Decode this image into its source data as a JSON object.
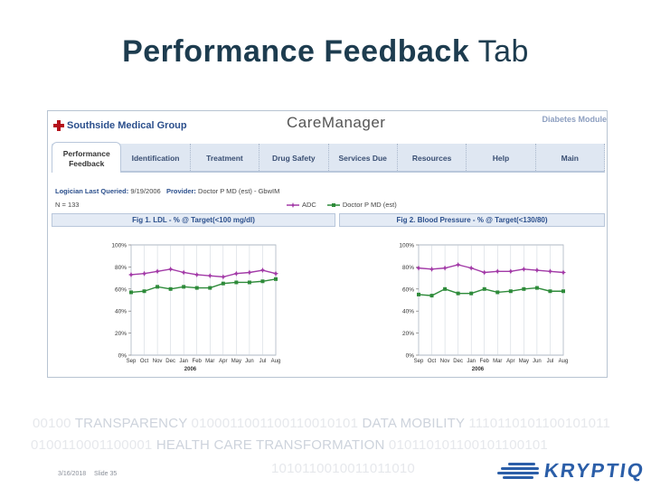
{
  "slide": {
    "title_bold": "Performance Feedback",
    "title_rest": "Tab",
    "date": "3/16/2018",
    "slide_label": "Slide 35"
  },
  "app": {
    "org": "Southside Medical Group",
    "title": "CareManager",
    "module": "Diabetes Module",
    "tabs": [
      {
        "label": "Performance Feedback",
        "active": true
      },
      {
        "label": "Identification",
        "active": false
      },
      {
        "label": "Treatment",
        "active": false
      },
      {
        "label": "Drug Safety",
        "active": false
      },
      {
        "label": "Services Due",
        "active": false
      },
      {
        "label": "Resources",
        "active": false
      },
      {
        "label": "Help",
        "active": false
      },
      {
        "label": "Main",
        "active": false
      }
    ],
    "queried_label": "Logician Last Queried:",
    "queried_value": "9/19/2006",
    "provider_label": "Provider:",
    "provider_value": "Doctor P MD (est) - GbwIM",
    "n_text": "N = 133",
    "legend": [
      {
        "name": "ADC",
        "color": "#a23aa7"
      },
      {
        "name": "Doctor P MD (est)",
        "color": "#2e8b3a"
      }
    ]
  },
  "chart_data": [
    {
      "type": "line",
      "title": "Fig 1. LDL - % @ Target(<100 mg/dl)",
      "categories": [
        "Sep",
        "Oct",
        "Nov",
        "Dec",
        "Jan",
        "Feb",
        "Mar",
        "Apr",
        "May",
        "Jun",
        "Jul",
        "Aug"
      ],
      "xlabel": "2006",
      "yticks": [
        "0%",
        "20%",
        "40%",
        "60%",
        "80%",
        "100%"
      ],
      "ylim": [
        0,
        100
      ],
      "series": [
        {
          "name": "ADC",
          "color": "#a23aa7",
          "values": [
            73,
            74,
            76,
            78,
            75,
            73,
            72,
            71,
            74,
            75,
            77,
            74
          ]
        },
        {
          "name": "Doctor P MD (est)",
          "color": "#2e8b3a",
          "values": [
            57,
            58,
            62,
            60,
            62,
            61,
            61,
            65,
            66,
            66,
            67,
            69
          ]
        }
      ]
    },
    {
      "type": "line",
      "title": "Fig 2. Blood Pressure - % @ Target(<130/80)",
      "categories": [
        "Sep",
        "Oct",
        "Nov",
        "Dec",
        "Jan",
        "Feb",
        "Mar",
        "Apr",
        "May",
        "Jun",
        "Jul",
        "Aug"
      ],
      "xlabel": "2006",
      "yticks": [
        "0%",
        "20%",
        "40%",
        "60%",
        "80%",
        "100%"
      ],
      "ylim": [
        0,
        100
      ],
      "series": [
        {
          "name": "ADC",
          "color": "#a23aa7",
          "values": [
            79,
            78,
            79,
            82,
            79,
            75,
            76,
            76,
            78,
            77,
            76,
            75
          ]
        },
        {
          "name": "Doctor P MD (est)",
          "color": "#2e8b3a",
          "values": [
            55,
            54,
            60,
            56,
            56,
            60,
            57,
            58,
            60,
            61,
            58,
            58
          ]
        }
      ]
    }
  ],
  "banner": {
    "line1_a": "00100 ",
    "line1_hl1": "TRANSPARENCY",
    "line1_b": " 0100011001100110010101 ",
    "line1_hl2": "DATA MOBILITY",
    "line1_c": " 1110110101100101011",
    "line2_a": "0100110001100001 ",
    "line2_hl": "HEALTH CARE TRANSFORMATION",
    "line2_b": " 010110101100101100101",
    "line3": "1010110010011011010"
  },
  "brand": {
    "name": "KRYPTIQ",
    "color": "#2b5ea8"
  }
}
